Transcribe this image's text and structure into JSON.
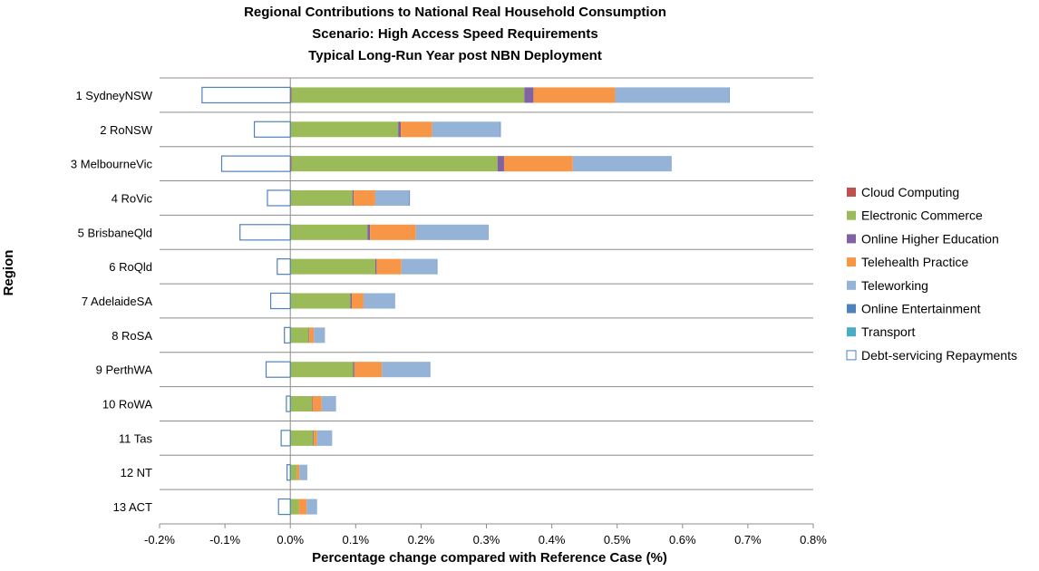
{
  "chart_data": {
    "type": "bar",
    "orientation": "horizontal",
    "stacked": true,
    "title": [
      "Regional Contributions to National Real Household Consumption",
      "Scenario: High Access Speed Requirements",
      "Typical Long-Run Year post NBN Deployment"
    ],
    "xlabel": "Percentage change compared with Reference Case (%)",
    "ylabel": "Region",
    "xlim": [
      -0.2,
      0.8
    ],
    "xticks": [
      -0.2,
      -0.1,
      0.0,
      0.1,
      0.2,
      0.3,
      0.4,
      0.5,
      0.6,
      0.7,
      0.8
    ],
    "xtick_labels": [
      "-0.2%",
      "-0.1%",
      "0.0%",
      "0.1%",
      "0.2%",
      "0.3%",
      "0.4%",
      "0.5%",
      "0.6%",
      "0.7%",
      "0.8%"
    ],
    "grid": "horizontal lines between categories",
    "legend_position": "right",
    "categories": [
      "1 SydneyNSW",
      "2 RoNSW",
      "3 MelbourneVic",
      "4 RoVic",
      "5 BrisbaneQld",
      "6 RoQld",
      "7 AdelaideSA",
      "8 RoSA",
      "9 PerthWA",
      "10 RoWA",
      "11 Tas",
      "12 NT",
      "13 ACT"
    ],
    "series": [
      {
        "name": "Cloud Computing",
        "color": "#C0504D",
        "fill": "solid",
        "values": [
          0.002,
          0.0,
          0.002,
          0.0,
          0.0,
          0.0,
          0.0,
          0.0,
          0.0,
          0.0,
          0.0,
          0.0,
          0.0
        ]
      },
      {
        "name": "Electronic Commerce",
        "color": "#9BBB59",
        "fill": "solid",
        "values": [
          0.356,
          0.165,
          0.315,
          0.095,
          0.118,
          0.13,
          0.092,
          0.028,
          0.096,
          0.033,
          0.035,
          0.01,
          0.013
        ]
      },
      {
        "name": "Online Higher Education",
        "color": "#8064A2",
        "fill": "solid",
        "values": [
          0.014,
          0.004,
          0.01,
          0.002,
          0.004,
          0.002,
          0.002,
          0.001,
          0.002,
          0.001,
          0.001,
          0.0,
          0.0
        ]
      },
      {
        "name": "Telehealth Practice",
        "color": "#F79646",
        "fill": "solid",
        "values": [
          0.125,
          0.048,
          0.105,
          0.033,
          0.07,
          0.038,
          0.018,
          0.007,
          0.042,
          0.014,
          0.005,
          0.004,
          0.012
        ]
      },
      {
        "name": "Teleworking",
        "color": "#95B3D7",
        "fill": "solid",
        "values": [
          0.174,
          0.104,
          0.15,
          0.052,
          0.11,
          0.054,
          0.047,
          0.017,
          0.073,
          0.022,
          0.023,
          0.012,
          0.016
        ]
      },
      {
        "name": "Online Entertainment",
        "color": "#4F81BD",
        "fill": "solid",
        "values": [
          0.001,
          0.001,
          0.001,
          0.001,
          0.001,
          0.001,
          0.001,
          0.0,
          0.001,
          0.0,
          0.0,
          0.0,
          0.0
        ]
      },
      {
        "name": "Transport",
        "color": "#4BACC6",
        "fill": "solid",
        "values": [
          0.0,
          0.0,
          0.0,
          0.0,
          0.0,
          0.0,
          0.0,
          0.0,
          0.0,
          0.0,
          0.0,
          0.0,
          0.0
        ]
      },
      {
        "name": "Debt-servicing Repayments",
        "color": "#4F81BD",
        "fill": "hollow",
        "values": [
          -0.135,
          -0.055,
          -0.105,
          -0.035,
          -0.077,
          -0.02,
          -0.03,
          -0.009,
          -0.037,
          -0.006,
          -0.014,
          -0.005,
          -0.018
        ]
      }
    ]
  }
}
